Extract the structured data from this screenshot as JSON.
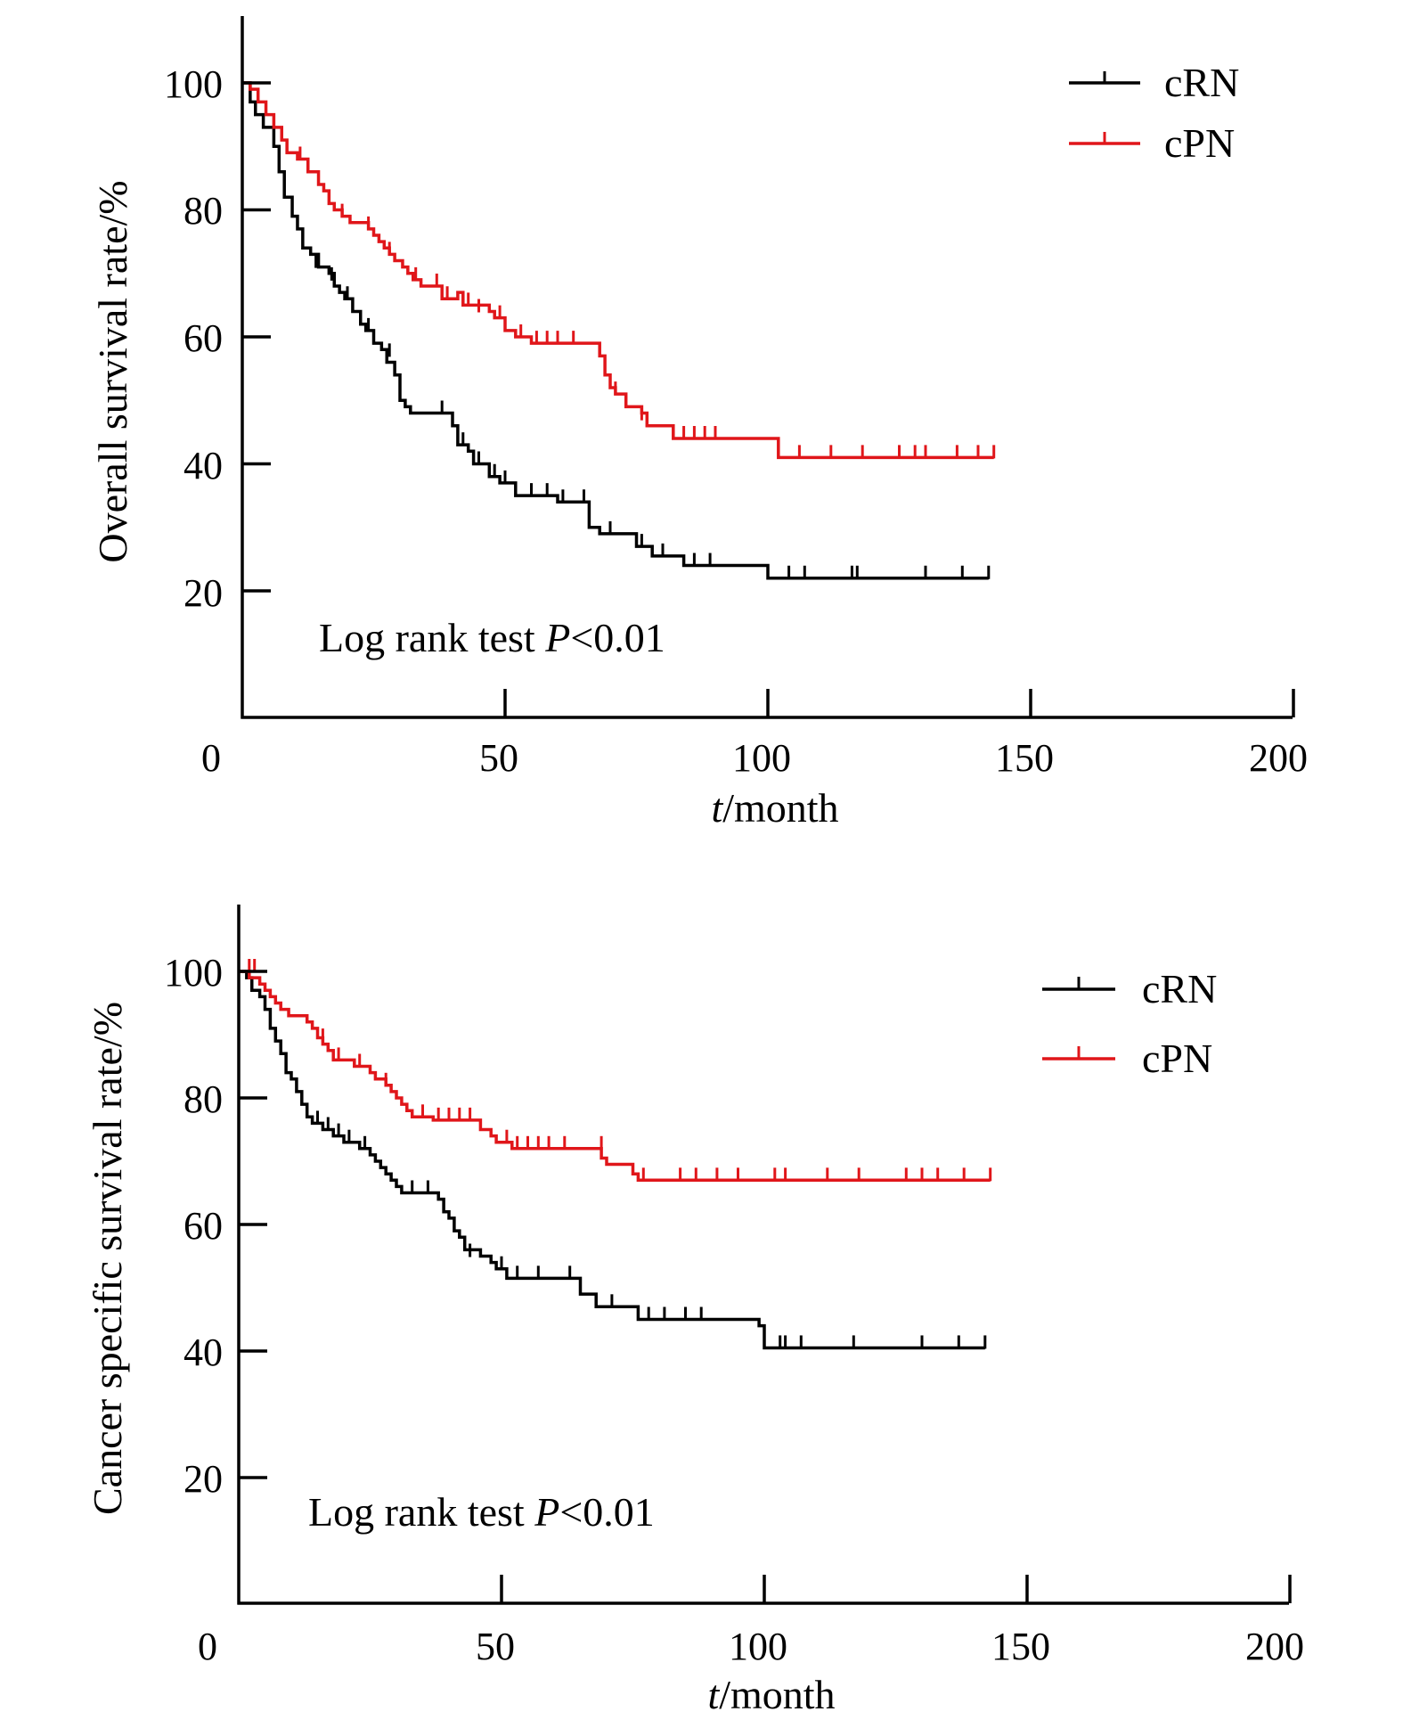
{
  "colors": {
    "cRN": "#000000",
    "cPN": "#e0161a",
    "axis": "#000000"
  },
  "chart_data": [
    {
      "type": "line",
      "step": true,
      "xlabel_italic": "t",
      "xlabel_rest": "/month",
      "ylabel": "Overall survival rate/%",
      "xlim": [
        0,
        200
      ],
      "ylim": [
        0,
        110
      ],
      "x_ticks": [
        "0",
        "50",
        "100",
        "150",
        "200"
      ],
      "y_ticks": [
        "20",
        "40",
        "60",
        "80",
        "100"
      ],
      "annotation_prefix": "Log rank test ",
      "annotation_italic": "P",
      "annotation_suffix": "<0.01",
      "legend_position": "top-right",
      "series": [
        {
          "name": "cRN",
          "color": "#000000",
          "steps": [
            [
              0,
              100
            ],
            [
              1.5,
              97
            ],
            [
              2.5,
              95
            ],
            [
              4,
              93
            ],
            [
              6,
              90
            ],
            [
              7,
              86
            ],
            [
              8,
              82
            ],
            [
              9.5,
              79
            ],
            [
              10.5,
              77
            ],
            [
              11.5,
              74
            ],
            [
              13,
              73
            ],
            [
              14.5,
              71
            ],
            [
              16.5,
              70
            ],
            [
              17.5,
              68
            ],
            [
              18.5,
              67
            ],
            [
              19.5,
              66
            ],
            [
              21,
              64
            ],
            [
              22.5,
              62
            ],
            [
              23.5,
              61
            ],
            [
              25,
              59
            ],
            [
              26.5,
              58
            ],
            [
              27.5,
              56
            ],
            [
              29,
              54
            ],
            [
              30,
              50
            ],
            [
              31,
              49
            ],
            [
              32,
              48
            ],
            [
              40,
              46
            ],
            [
              41,
              43
            ],
            [
              43,
              42
            ],
            [
              44,
              40
            ],
            [
              47,
              38
            ],
            [
              49,
              37
            ],
            [
              52,
              35
            ],
            [
              60,
              34
            ],
            [
              66,
              30
            ],
            [
              68,
              29
            ],
            [
              75,
              27
            ],
            [
              78,
              25.5
            ],
            [
              84,
              24
            ],
            [
              100,
              22
            ],
            [
              142,
              22
            ]
          ],
          "censors": [
            [
              14,
              71
            ],
            [
              17,
              69
            ],
            [
              20,
              66
            ],
            [
              24,
              61
            ],
            [
              28,
              57
            ],
            [
              38,
              48
            ],
            [
              42,
              43
            ],
            [
              45,
              40
            ],
            [
              48,
              38
            ],
            [
              50,
              37
            ],
            [
              55,
              35
            ],
            [
              58,
              35
            ],
            [
              61,
              34
            ],
            [
              65,
              34
            ],
            [
              70,
              29
            ],
            [
              76,
              27
            ],
            [
              80,
              25.5
            ],
            [
              86,
              24
            ],
            [
              89,
              24
            ],
            [
              104,
              22
            ],
            [
              107,
              22
            ],
            [
              116,
              22
            ],
            [
              117,
              22
            ],
            [
              130,
              22
            ],
            [
              137,
              22
            ],
            [
              142,
              22
            ]
          ]
        },
        {
          "name": "cPN",
          "color": "#e0161a",
          "steps": [
            [
              0,
              100
            ],
            [
              1.5,
              99
            ],
            [
              3,
              97
            ],
            [
              4.5,
              95
            ],
            [
              6,
              93
            ],
            [
              7.5,
              91
            ],
            [
              8.5,
              89
            ],
            [
              10.5,
              88
            ],
            [
              12.5,
              86
            ],
            [
              14.5,
              84
            ],
            [
              15.5,
              83
            ],
            [
              16.5,
              81
            ],
            [
              17.5,
              80
            ],
            [
              19,
              79
            ],
            [
              20.5,
              78
            ],
            [
              24,
              77
            ],
            [
              25,
              76
            ],
            [
              26,
              75
            ],
            [
              27,
              74
            ],
            [
              28,
              73
            ],
            [
              29,
              72
            ],
            [
              30.5,
              71
            ],
            [
              31.5,
              70
            ],
            [
              32.5,
              69
            ],
            [
              34,
              68
            ],
            [
              38,
              66
            ],
            [
              41,
              67
            ],
            [
              42,
              65
            ],
            [
              47,
              64
            ],
            [
              48,
              63
            ],
            [
              50,
              61
            ],
            [
              52,
              60
            ],
            [
              55,
              59
            ],
            [
              63,
              59
            ],
            [
              68,
              57
            ],
            [
              69,
              54
            ],
            [
              70,
              52
            ],
            [
              71,
              51
            ],
            [
              73,
              49
            ],
            [
              76,
              48
            ],
            [
              77,
              46
            ],
            [
              82,
              44
            ],
            [
              88,
              44
            ],
            [
              102,
              41
            ],
            [
              143,
              41
            ]
          ],
          "censors": [
            [
              6,
              93
            ],
            [
              11,
              88
            ],
            [
              19,
              79
            ],
            [
              24,
              77
            ],
            [
              28,
              73
            ],
            [
              33,
              69
            ],
            [
              37,
              68
            ],
            [
              39,
              66
            ],
            [
              43,
              65
            ],
            [
              45,
              64
            ],
            [
              49,
              63
            ],
            [
              53,
              60
            ],
            [
              56,
              59
            ],
            [
              58,
              59
            ],
            [
              60,
              59
            ],
            [
              63,
              59
            ],
            [
              71,
              51
            ],
            [
              76,
              47
            ],
            [
              84,
              44
            ],
            [
              86,
              44
            ],
            [
              88,
              44
            ],
            [
              90,
              44
            ],
            [
              106,
              41
            ],
            [
              112,
              41
            ],
            [
              118,
              41
            ],
            [
              125,
              41
            ],
            [
              128,
              41
            ],
            [
              130,
              41
            ],
            [
              136,
              41
            ],
            [
              140,
              41
            ],
            [
              143,
              41
            ]
          ]
        }
      ]
    },
    {
      "type": "line",
      "step": true,
      "xlabel_italic": "t",
      "xlabel_rest": "/month",
      "ylabel": "Cancer specific survival rate/%",
      "xlim": [
        0,
        200
      ],
      "ylim": [
        0,
        110
      ],
      "x_ticks": [
        "0",
        "50",
        "100",
        "150",
        "200"
      ],
      "y_ticks": [
        "20",
        "40",
        "60",
        "80",
        "100"
      ],
      "annotation_prefix": "Log rank test ",
      "annotation_italic": "P",
      "annotation_suffix": "<0.01",
      "legend_position": "top-right",
      "series": [
        {
          "name": "cRN",
          "color": "#000000",
          "steps": [
            [
              0,
              100
            ],
            [
              1.5,
              99
            ],
            [
              2.5,
              97
            ],
            [
              4,
              96
            ],
            [
              5,
              94
            ],
            [
              6,
              91
            ],
            [
              7,
              89
            ],
            [
              8,
              87
            ],
            [
              9,
              84
            ],
            [
              10,
              83
            ],
            [
              11,
              81
            ],
            [
              12,
              79
            ],
            [
              13,
              77
            ],
            [
              14,
              76
            ],
            [
              16,
              75
            ],
            [
              18,
              74
            ],
            [
              20,
              73
            ],
            [
              23,
              72
            ],
            [
              25,
              71
            ],
            [
              26,
              70
            ],
            [
              27,
              69
            ],
            [
              28,
              68
            ],
            [
              29,
              67
            ],
            [
              30,
              66
            ],
            [
              31,
              65
            ],
            [
              38,
              64
            ],
            [
              39,
              62
            ],
            [
              40,
              61
            ],
            [
              41,
              59
            ],
            [
              42,
              58
            ],
            [
              43,
              56
            ],
            [
              46,
              55
            ],
            [
              48,
              54
            ],
            [
              49,
              53
            ],
            [
              51,
              51.5
            ],
            [
              60,
              51.5
            ],
            [
              65,
              49
            ],
            [
              68,
              47
            ],
            [
              76,
              45
            ],
            [
              99,
              44
            ],
            [
              100,
              40.5
            ],
            [
              142,
              40.5
            ]
          ],
          "censors": [
            [
              15,
              76
            ],
            [
              17,
              75
            ],
            [
              19,
              74
            ],
            [
              21,
              73
            ],
            [
              24,
              72
            ],
            [
              33,
              65
            ],
            [
              36,
              65
            ],
            [
              44,
              55
            ],
            [
              50,
              53
            ],
            [
              53,
              51.5
            ],
            [
              57,
              51.5
            ],
            [
              63,
              51.5
            ],
            [
              71,
              47
            ],
            [
              78,
              45
            ],
            [
              81,
              45
            ],
            [
              85,
              45
            ],
            [
              88,
              45
            ],
            [
              103,
              40.5
            ],
            [
              104,
              40.5
            ],
            [
              107,
              40.5
            ],
            [
              117,
              40.5
            ],
            [
              130,
              40.5
            ],
            [
              137,
              40.5
            ],
            [
              142,
              40.5
            ]
          ]
        },
        {
          "name": "cPN",
          "color": "#e0161a",
          "steps": [
            [
              0,
              100
            ],
            [
              2,
              99
            ],
            [
              4,
              98
            ],
            [
              5,
              97
            ],
            [
              6,
              96
            ],
            [
              7,
              95
            ],
            [
              8,
              94
            ],
            [
              9.5,
              93
            ],
            [
              13,
              92
            ],
            [
              14,
              91
            ],
            [
              15,
              89.5
            ],
            [
              16,
              88.5
            ],
            [
              17,
              87.5
            ],
            [
              18,
              86
            ],
            [
              22,
              85
            ],
            [
              25,
              84
            ],
            [
              26,
              83
            ],
            [
              28,
              82
            ],
            [
              29,
              81
            ],
            [
              30,
              80
            ],
            [
              31,
              79
            ],
            [
              32,
              78
            ],
            [
              33,
              77
            ],
            [
              37,
              76.5
            ],
            [
              46,
              75
            ],
            [
              48,
              74
            ],
            [
              49,
              73
            ],
            [
              52,
              72
            ],
            [
              69,
              70.5
            ],
            [
              70,
              69.5
            ],
            [
              75,
              68
            ],
            [
              76,
              67
            ],
            [
              143,
              67
            ]
          ],
          "censors": [
            [
              2,
              100
            ],
            [
              3,
              100
            ],
            [
              16,
              89
            ],
            [
              19,
              86
            ],
            [
              23,
              85
            ],
            [
              28,
              82
            ],
            [
              35,
              77
            ],
            [
              38,
              76.5
            ],
            [
              40,
              76.5
            ],
            [
              42,
              76.5
            ],
            [
              44,
              76.5
            ],
            [
              51,
              73
            ],
            [
              53,
              72
            ],
            [
              55,
              72
            ],
            [
              57,
              72
            ],
            [
              59,
              72
            ],
            [
              62,
              72
            ],
            [
              69,
              72
            ],
            [
              77,
              67
            ],
            [
              84,
              67
            ],
            [
              87,
              67
            ],
            [
              91,
              67
            ],
            [
              95,
              67
            ],
            [
              102,
              67
            ],
            [
              104,
              67
            ],
            [
              112,
              67
            ],
            [
              118,
              67
            ],
            [
              127,
              67
            ],
            [
              130,
              67
            ],
            [
              133,
              67
            ],
            [
              138,
              67
            ],
            [
              143,
              67
            ]
          ]
        }
      ]
    }
  ]
}
